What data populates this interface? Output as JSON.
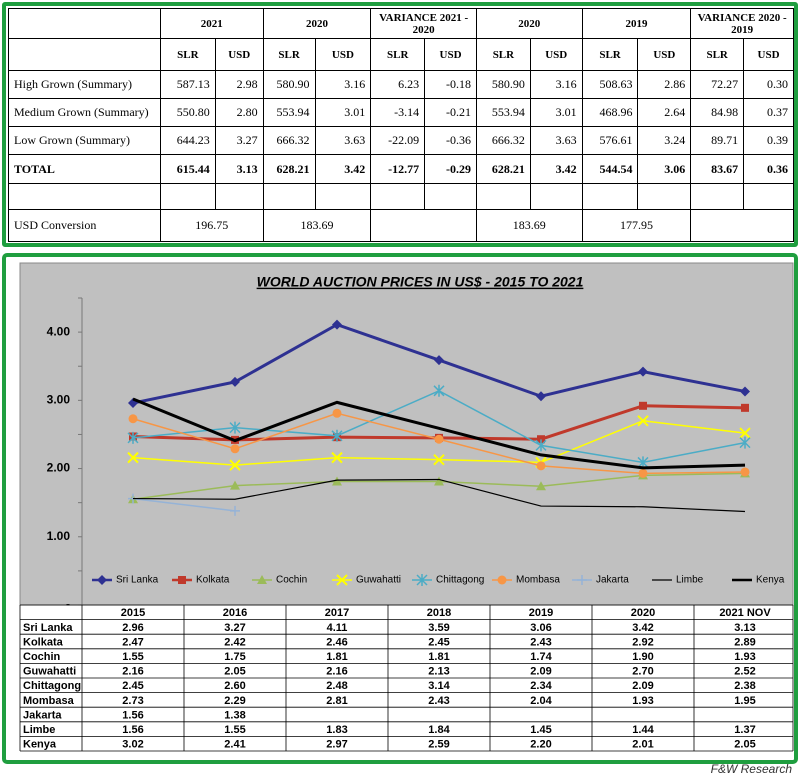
{
  "table": {
    "columns": [
      "2021",
      "2020",
      "VARIANCE 2021 - 2020",
      "2020",
      "2019",
      "VARIANCE 2020 - 2019"
    ],
    "subheaders": [
      "SLR",
      "USD"
    ],
    "rows": [
      {
        "label": "High Grown  (Summary)",
        "cells": [
          "587.13",
          "2.98",
          "580.90",
          "3.16",
          "6.23",
          "-0.18",
          "580.90",
          "3.16",
          "508.63",
          "2.86",
          "72.27",
          "0.30"
        ]
      },
      {
        "label": "Medium Grown (Summary)",
        "cells": [
          "550.80",
          "2.80",
          "553.94",
          "3.01",
          "-3.14",
          "-0.21",
          "553.94",
          "3.01",
          "468.96",
          "2.64",
          "84.98",
          "0.37"
        ]
      },
      {
        "label": "Low Grown  (Summary)",
        "cells": [
          "644.23",
          "3.27",
          "666.32",
          "3.63",
          "-22.09",
          "-0.36",
          "666.32",
          "3.63",
          "576.61",
          "3.24",
          "89.71",
          "0.39"
        ]
      },
      {
        "label": "TOTAL",
        "emphasis": true,
        "cells": [
          "615.44",
          "3.13",
          "628.21",
          "3.42",
          "-12.77",
          "-0.29",
          "628.21",
          "3.42",
          "544.54",
          "3.06",
          "83.67",
          "0.36"
        ]
      }
    ],
    "conversion": {
      "label": "USD Conversion",
      "cells": [
        "196.75",
        "183.69",
        null,
        "183.69",
        "177.95",
        null
      ]
    }
  },
  "chart_data": {
    "type": "line",
    "title": "WORLD AUCTION PRICES IN US$ - 2015 TO 2021",
    "categories": [
      "2015",
      "2016",
      "2017",
      "2018",
      "2019",
      "2020",
      "2021 NOV"
    ],
    "ylim": [
      0,
      4.5
    ],
    "yticks": [
      {
        "value": 0,
        "label": "-"
      },
      0.5,
      1,
      1.5,
      2,
      2.5,
      3,
      3.5,
      4,
      4.5
    ],
    "ytick_format": {
      "0.5": "0.50",
      "1": "1.00",
      "1.5": "1.50",
      "2": "2.00",
      "2.5": "2.50",
      "3": "3.00",
      "3.5": "3.50",
      "4": "4.00",
      "4.5": "4.50"
    },
    "grid": false,
    "legend": "bottom",
    "series": [
      {
        "name": "Sri Lanka",
        "color": "#2e3192",
        "marker": "diamond",
        "width": 3,
        "values": [
          2.96,
          3.27,
          4.11,
          3.59,
          3.06,
          3.42,
          3.13
        ],
        "value_labels": [
          "2.96",
          "3.27",
          "4.11",
          "3.59",
          "3.06",
          "3.42",
          "3.13"
        ]
      },
      {
        "name": "Kolkata",
        "color": "#c0392b",
        "marker": "square",
        "width": 3,
        "values": [
          2.47,
          2.42,
          2.46,
          2.45,
          2.43,
          2.92,
          2.89
        ],
        "value_labels": [
          "2.47",
          "2.42",
          "2.46",
          "2.45",
          "2.43",
          "2.92",
          "2.89"
        ]
      },
      {
        "name": "Cochin",
        "color": "#9bbb59",
        "marker": "triangle",
        "width": 1.5,
        "values": [
          1.55,
          1.75,
          1.81,
          1.81,
          1.74,
          1.9,
          1.93
        ],
        "value_labels": [
          "1.55",
          "1.75",
          "1.81",
          "1.81",
          "1.74",
          "1.90",
          "1.93"
        ]
      },
      {
        "name": "Guwahatti",
        "color": "#ffff00",
        "marker": "x",
        "width": 1.5,
        "values": [
          2.16,
          2.05,
          2.16,
          2.13,
          2.09,
          2.7,
          2.52
        ],
        "value_labels": [
          "2.16",
          "2.05",
          "2.16",
          "2.13",
          "2.09",
          "2.70",
          "2.52"
        ]
      },
      {
        "name": "Chittagong",
        "color": "#4bacc6",
        "marker": "star",
        "width": 1.5,
        "values": [
          2.45,
          2.6,
          2.48,
          3.14,
          2.34,
          2.09,
          2.38
        ],
        "value_labels": [
          "2.45",
          "2.60",
          "2.48",
          "3.14",
          "2.34",
          "2.09",
          "2.38"
        ]
      },
      {
        "name": "Mombasa",
        "color": "#f79646",
        "marker": "circle",
        "width": 1.5,
        "values": [
          2.73,
          2.29,
          2.81,
          2.43,
          2.04,
          1.93,
          1.95
        ],
        "value_labels": [
          "2.73",
          "2.29",
          "2.81",
          "2.43",
          "2.04",
          "1.93",
          "1.95"
        ]
      },
      {
        "name": "Jakarta",
        "color": "#95b3d7",
        "marker": "plus",
        "width": 1.5,
        "values": [
          1.56,
          1.38,
          null,
          null,
          null,
          null,
          null
        ],
        "value_labels": [
          "1.56",
          "1.38",
          null,
          null,
          null,
          null,
          null
        ]
      },
      {
        "name": "Limbe",
        "color": "#000000",
        "marker": "none",
        "width": 1.2,
        "values": [
          1.56,
          1.55,
          1.83,
          1.84,
          1.45,
          1.44,
          1.37
        ],
        "value_labels": [
          "1.56",
          "1.55",
          "1.83",
          "1.84",
          "1.45",
          "1.44",
          "1.37"
        ]
      },
      {
        "name": "Kenya",
        "color": "#000000",
        "marker": "none",
        "width": 3,
        "values": [
          3.02,
          2.41,
          2.97,
          2.59,
          2.2,
          2.01,
          2.05
        ],
        "value_labels": [
          "3.02",
          "2.41",
          "2.97",
          "2.59",
          "2.20",
          "2.01",
          "2.05"
        ]
      }
    ],
    "source": "F&W Research"
  }
}
